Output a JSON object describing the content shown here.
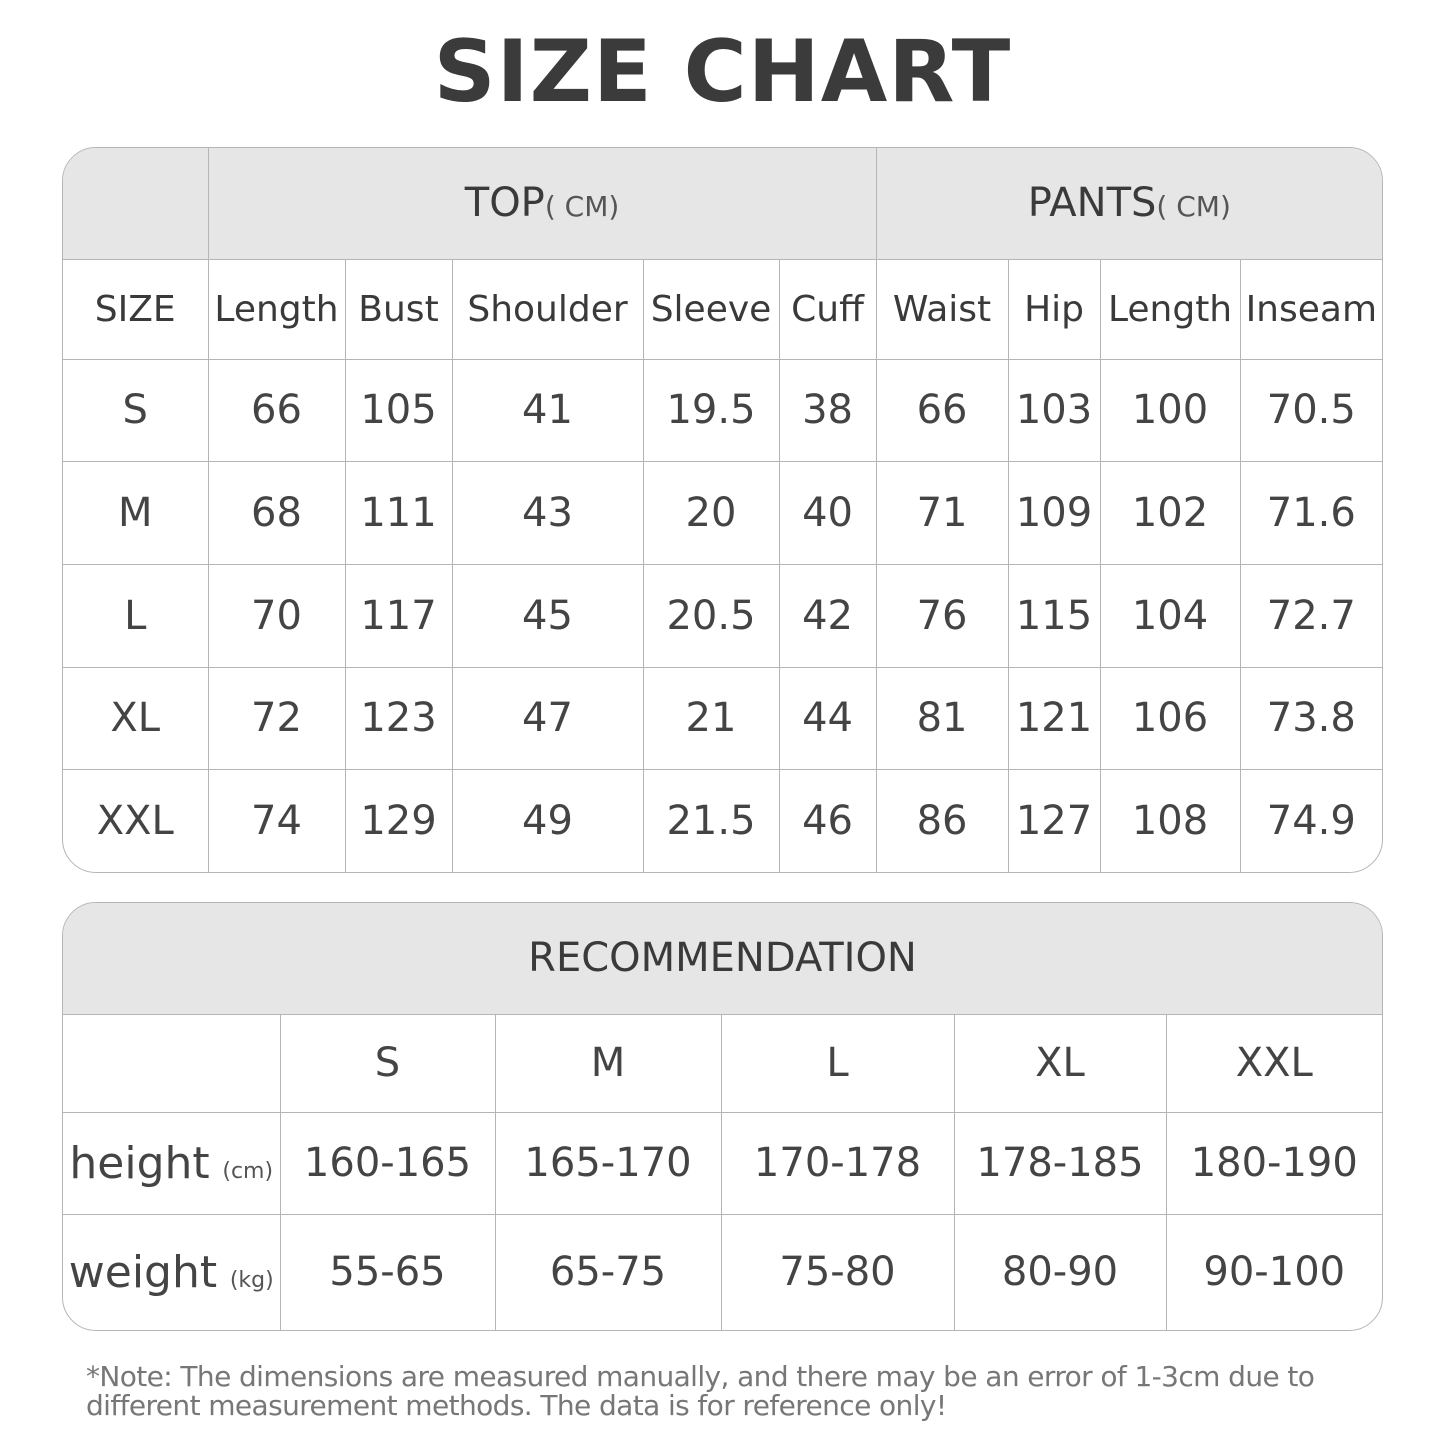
{
  "title": "SIZE CHART",
  "size_table": {
    "top_group": {
      "label": "TOP",
      "unit": "( CM)"
    },
    "pants_group": {
      "label": "PANTS",
      "unit": "( CM)"
    },
    "columns": [
      "SIZE",
      "Length",
      "Bust",
      "Shoulder",
      "Sleeve",
      "Cuff",
      "Waist",
      "Hip",
      "Length",
      "Inseam"
    ],
    "rows": [
      [
        "S",
        "66",
        "105",
        "41",
        "19.5",
        "38",
        "66",
        "103",
        "100",
        "70.5"
      ],
      [
        "M",
        "68",
        "111",
        "43",
        "20",
        "40",
        "71",
        "109",
        "102",
        "71.6"
      ],
      [
        "L",
        "70",
        "117",
        "45",
        "20.5",
        "42",
        "76",
        "115",
        "104",
        "72.7"
      ],
      [
        "XL",
        "72",
        "123",
        "47",
        "21",
        "44",
        "81",
        "121",
        "106",
        "73.8"
      ],
      [
        "XXL",
        "74",
        "129",
        "49",
        "21.5",
        "46",
        "86",
        "127",
        "108",
        "74.9"
      ]
    ]
  },
  "recommendation": {
    "title": "RECOMMENDATION",
    "sizes": [
      "S",
      "M",
      "L",
      "XL",
      "XXL"
    ],
    "rows": [
      {
        "label": "height",
        "unit": "(cm)",
        "values": [
          "160-165",
          "165-170",
          "170-178",
          "178-185",
          "180-190"
        ]
      },
      {
        "label": "weight",
        "unit": "(kg)",
        "values": [
          "55-65",
          "65-75",
          "75-80",
          "80-90",
          "90-100"
        ]
      }
    ]
  },
  "note": "*Note: The dimensions are measured manually, and there may be an error of 1-3cm due to different measurement methods. The data is for reference only!",
  "colors": {
    "header_bg": "#e6e6e6",
    "border": "#b5b5b5",
    "text": "#3a3a3a"
  }
}
